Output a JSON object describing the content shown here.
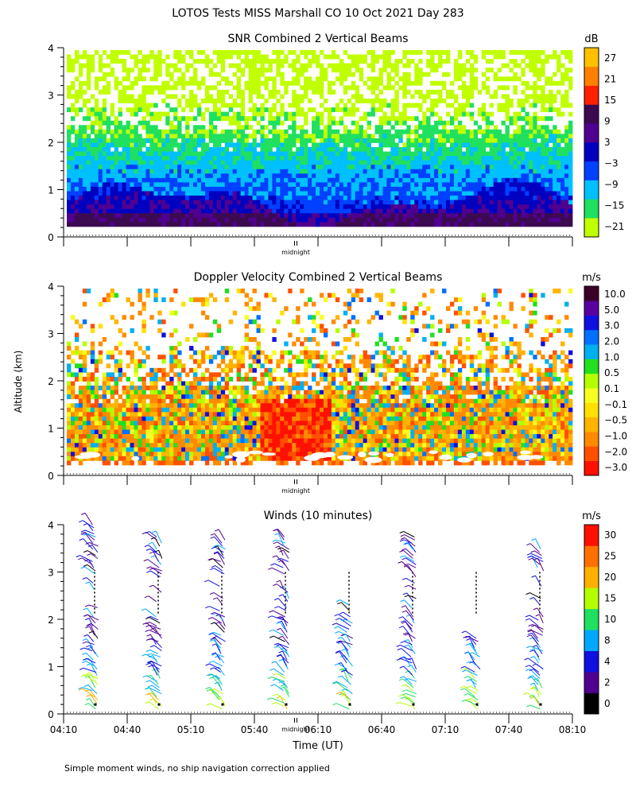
{
  "main_title": "LOTOS Tests MISS Marshall CO  10 Oct 2021 Day 283",
  "shared": {
    "yaxis_label": "Altitude (km)",
    "ytick_labels": [
      "0",
      "1",
      "2",
      "3",
      "4"
    ],
    "ylim": [
      0,
      4
    ],
    "midnight_label": "midnight",
    "xtick_labels": [
      "04:10",
      "04:40",
      "05:10",
      "05:40",
      "06:10",
      "06:40",
      "07:10",
      "07:40",
      "08:10"
    ],
    "xlabel": "Time (UT)"
  },
  "footnote": "Simple moment winds, no ship navigation correction applied",
  "colors": {
    "snr": [
      "#c0ff00",
      "#20e060",
      "#00c0ff",
      "#0040ff",
      "#0000c0",
      "#500090",
      "#3c0a50",
      "#ff2000",
      "#ff8000",
      "#ffc000"
    ],
    "vel": [
      "#ff1000",
      "#ff5000",
      "#ff8a00",
      "#ffb400",
      "#ffe000",
      "#f8ff20",
      "#b4ff00",
      "#20e020",
      "#00b0f0",
      "#0070ff",
      "#1010e0",
      "#5a00a0",
      "#3a0028"
    ],
    "wind": [
      "#000000",
      "#500090",
      "#1010e0",
      "#00a8ff",
      "#20e060",
      "#b4ff00",
      "#ffb000",
      "#ff7000",
      "#ff1000"
    ]
  },
  "chart_data": [
    {
      "type": "heatmap",
      "title": "SNR Combined 2 Vertical Beams",
      "ylabel": "Altitude (km)",
      "ylim": [
        0,
        4
      ],
      "xlim": [
        "04:10",
        "08:10"
      ],
      "colorbar": {
        "unit": "dB",
        "labels": [
          "27",
          "21",
          "15",
          "9",
          "3",
          "−3",
          "−9",
          "−15",
          "−21"
        ],
        "levels": [
          -21,
          -15,
          -9,
          -3,
          3,
          9,
          15,
          21,
          27
        ]
      }
    },
    {
      "type": "heatmap",
      "title": "Doppler Velocity Combined 2 Vertical Beams",
      "ylabel": "Altitude (km)",
      "ylim": [
        0,
        4
      ],
      "xlim": [
        "04:10",
        "08:10"
      ],
      "colorbar": {
        "unit": "m/s",
        "labels": [
          "10.0",
          "5.0",
          "3.0",
          "2.0",
          "1.0",
          "0.5",
          "0.1",
          "−0.1",
          "−0.5",
          "−1.0",
          "−2.0",
          "−3.0"
        ],
        "levels": [
          -3.0,
          -2.0,
          -1.0,
          -0.5,
          -0.1,
          0.1,
          0.5,
          1.0,
          2.0,
          3.0,
          5.0,
          10.0
        ]
      }
    },
    {
      "type": "scatter",
      "title": "Winds (10 minutes)",
      "ylabel": "Altitude (km)",
      "xlabel": "Time (UT)",
      "ylim": [
        0,
        4
      ],
      "xlim": [
        "04:10",
        "08:10"
      ],
      "profile_times": [
        "04:25",
        "04:55",
        "05:25",
        "05:55",
        "06:25",
        "06:55",
        "07:25",
        "07:55"
      ],
      "colorbar": {
        "unit": "m/s",
        "labels": [
          "30",
          "25",
          "20",
          "15",
          "10",
          "8",
          "4",
          "2",
          "0"
        ],
        "levels": [
          0,
          2,
          4,
          8,
          10,
          15,
          20,
          25,
          30
        ]
      }
    }
  ]
}
